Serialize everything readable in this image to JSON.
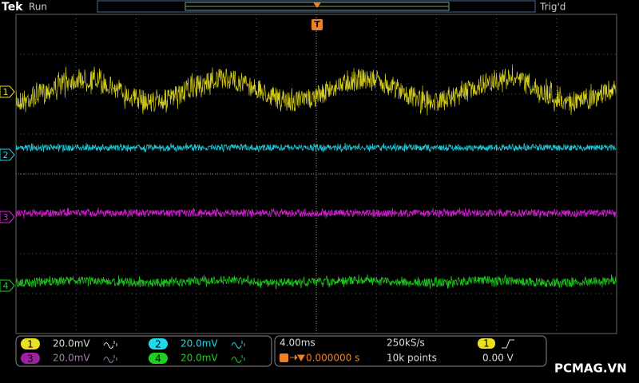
{
  "header": {
    "brand": "Tek",
    "status": "Run",
    "trigger_status": "Trig'd",
    "trigger_marker": "T"
  },
  "channels": [
    {
      "marker": "1",
      "scale": "20.0mV"
    },
    {
      "marker": "2",
      "scale": "20.0mV"
    },
    {
      "marker": "3",
      "scale": "20.0mV"
    },
    {
      "marker": "4",
      "scale": "20.0mV"
    }
  ],
  "timebase": {
    "scale": "4.00ms",
    "sample_rate": "250kS/s",
    "position": "0.000000 s",
    "record_length": "10k points"
  },
  "trigger": {
    "source": "1",
    "level": "0.00 V"
  },
  "watermark": "PCMAG.VN"
}
